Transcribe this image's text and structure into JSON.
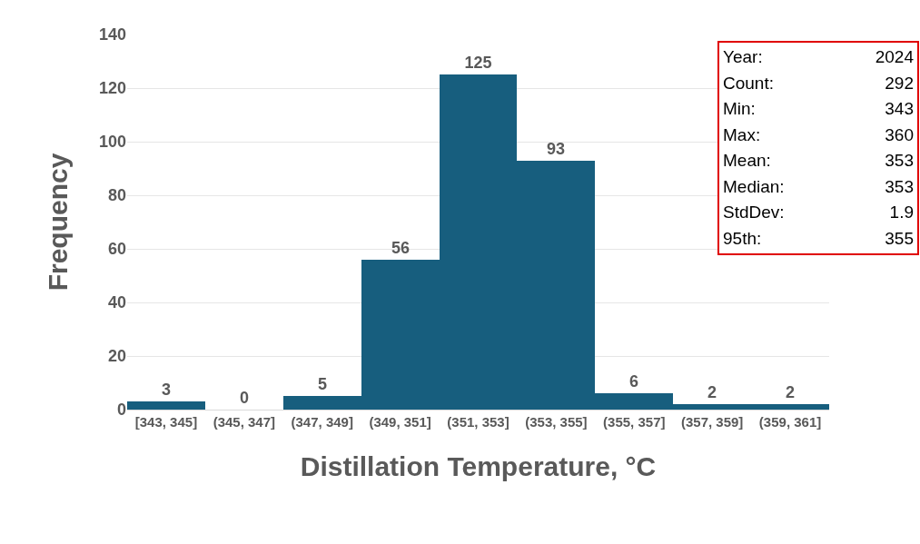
{
  "chart_data": {
    "type": "bar",
    "xlabel": "Distillation Temperature, °C",
    "ylabel": "Frequency",
    "categories": [
      "[343, 345]",
      "(345, 347]",
      "(347, 349]",
      "(349, 351]",
      "(351, 353]",
      "(353, 355]",
      "(355, 357]",
      "(357, 359]",
      "(359, 361]"
    ],
    "values": [
      3,
      0,
      5,
      56,
      125,
      93,
      6,
      2,
      2
    ],
    "color": "#175e7e",
    "data_labels": true,
    "ylim": [
      0,
      140
    ],
    "yticks": [
      0,
      20,
      40,
      60,
      80,
      100,
      120,
      140
    ],
    "grid": "y",
    "legend": false,
    "annotations": [
      "Year: 2024",
      "Count: 292",
      "Min: 343",
      "Max: 360",
      "Mean: 353",
      "Median: 353",
      "StdDev: 1.9",
      "95th: 355"
    ]
  }
}
